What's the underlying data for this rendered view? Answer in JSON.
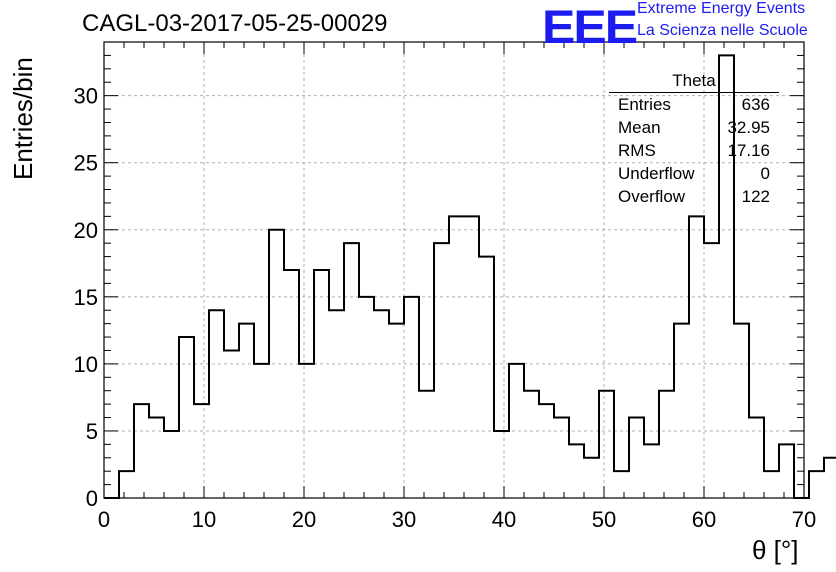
{
  "title": "CAGL-03-2017-05-25-00029",
  "logo": {
    "mark": "EEE",
    "line1": "Extreme Energy Events",
    "line2": "La Scienza nelle Scuole",
    "color": "#1c1cf0"
  },
  "stats": {
    "title": "Theta",
    "rows": [
      {
        "label": "Entries",
        "value": "636"
      },
      {
        "label": "Mean",
        "value": "32.95"
      },
      {
        "label": "RMS",
        "value": "17.16"
      },
      {
        "label": "Underflow",
        "value": "0"
      },
      {
        "label": "Overflow",
        "value": "122"
      }
    ]
  },
  "chart_data": {
    "type": "bar",
    "style": "step-histogram",
    "title": "CAGL-03-2017-05-25-00029",
    "xlabel": "θ [°]",
    "ylabel": "Entries/bin",
    "xlim": [
      0,
      70
    ],
    "ylim": [
      0,
      34
    ],
    "bin_width": 1.5,
    "bin_start": 0,
    "grid": true,
    "xticks": [
      0,
      10,
      20,
      30,
      40,
      50,
      60,
      70
    ],
    "yticks": [
      0,
      5,
      10,
      15,
      20,
      25,
      30
    ],
    "values": [
      0,
      2,
      7,
      6,
      5,
      12,
      7,
      14,
      11,
      13,
      10,
      20,
      17,
      10,
      17,
      14,
      19,
      15,
      14,
      13,
      15,
      8,
      19,
      21,
      21,
      18,
      5,
      10,
      8,
      7,
      6,
      4,
      3,
      8,
      2,
      6,
      4,
      8,
      13,
      21,
      19,
      33,
      13,
      6,
      2,
      4,
      0,
      2,
      3
    ]
  }
}
